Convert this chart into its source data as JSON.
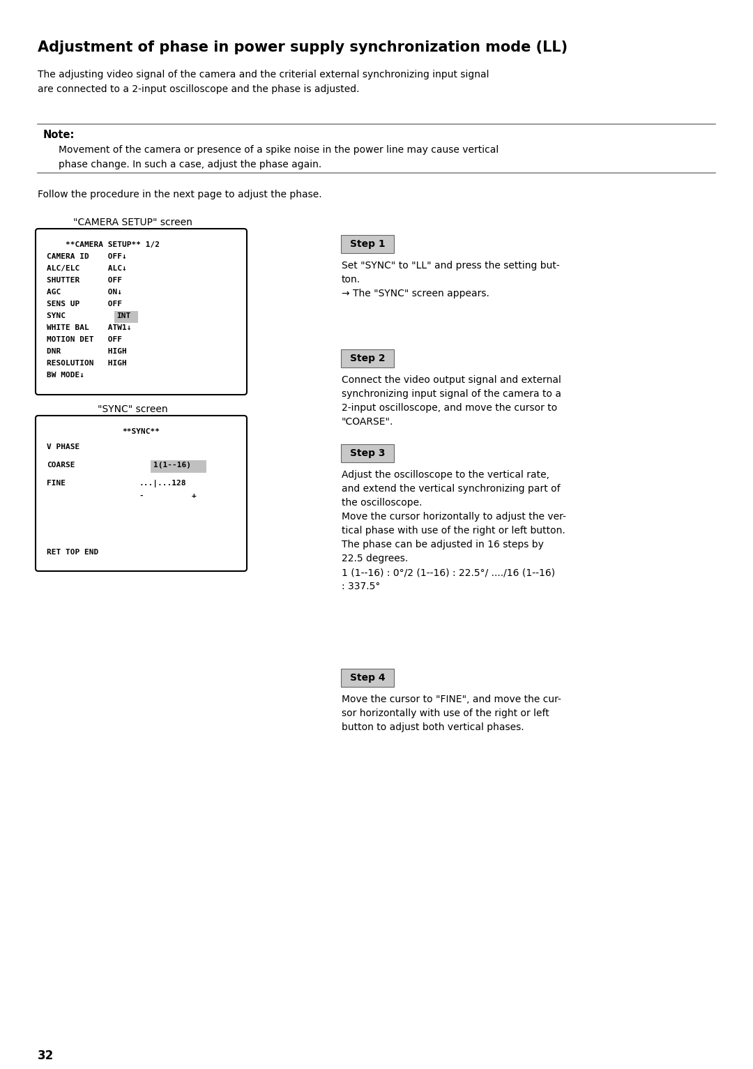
{
  "title": "Adjustment of phase in power supply synchronization mode (LL)",
  "intro_text": "The adjusting video signal of the camera and the criterial external synchronizing input signal\nare connected to a 2-input oscilloscope and the phase is adjusted.",
  "note_label": "Note:",
  "note_text": "Movement of the camera or presence of a spike noise in the power line may cause vertical\nphase change. In such a case, adjust the phase again.",
  "follow_text": "Follow the procedure in the next page to adjust the phase.",
  "camera_screen_label": "\"CAMERA SETUP\" screen",
  "camera_screen_lines": [
    "    **CAMERA SETUP** 1/2",
    "CAMERA ID    OFF↓",
    "ALC/ELC      ALC↓",
    "SHUTTER      OFF",
    "AGC          ON↓",
    "SENS UP      OFF",
    "SYNC         INT",
    "WHITE BAL    ATW1↓",
    "MOTION DET   OFF",
    "DNR          HIGH",
    "RESOLUTION   HIGH",
    "BW MODE↓"
  ],
  "sync_screen_label": "\"SYNC\" screen",
  "sync_screen_lines_left": [
    "**SYNC**",
    "V PHASE",
    "COARSE",
    "FINE",
    "",
    "RET TOP END"
  ],
  "sync_screen_lines_right": [
    "",
    "",
    "1(1--16)",
    "...|...128",
    "-      +",
    ""
  ],
  "steps": [
    {
      "label": "Step 1",
      "text": "Set \"SYNC\" to \"LL\" and press the setting but-\nton.\n→ The \"SYNC\" screen appears."
    },
    {
      "label": "Step 2",
      "text": "Connect the video output signal and external\nsynchronizing input signal of the camera to a\n2-input oscilloscope, and move the cursor to\n\"COARSE\"."
    },
    {
      "label": "Step 3",
      "text": "Adjust the oscilloscope to the vertical rate,\nand extend the vertical synchronizing part of\nthe oscilloscope.\nMove the cursor horizontally to adjust the ver-\ntical phase with use of the right or left button.\nThe phase can be adjusted in 16 steps by\n22.5 degrees.\n1 (1--16) : 0°/2 (1--16) : 22.5°/ ..../16 (1--16)\n: 337.5°"
    },
    {
      "label": "Step 4",
      "text": "Move the cursor to \"FINE\", and move the cur-\nsor horizontally with use of the right or left\nbutton to adjust both vertical phases."
    }
  ],
  "page_number": "32",
  "bg_color": "#ffffff",
  "text_color": "#000000",
  "step_bg_color": "#c8c8c8",
  "note_line_color": "#888888",
  "screen_bg_color": "#ffffff",
  "screen_border_color": "#000000",
  "sync_highlight_bg": "#c0c0c0"
}
